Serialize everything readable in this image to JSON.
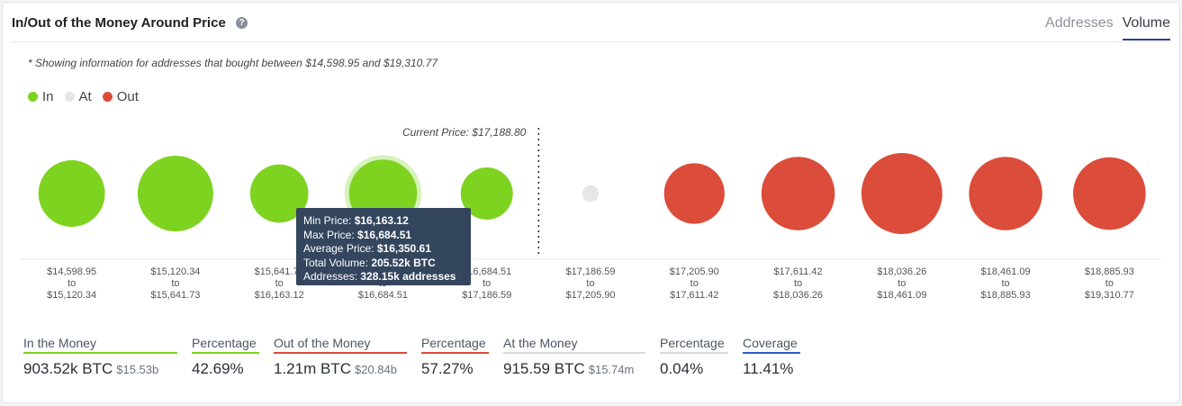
{
  "header": {
    "title": "In/Out of the Money Around Price",
    "help_icon": "question-icon",
    "tabs": [
      {
        "label": "Addresses",
        "active": false
      },
      {
        "label": "Volume",
        "active": true
      }
    ]
  },
  "note": "* Showing information for addresses that bought between $14,598.95 and $19,310.77",
  "legend": [
    {
      "label": "In",
      "color": "#7ed321"
    },
    {
      "label": "At",
      "color": "#e6e6e6"
    },
    {
      "label": "Out",
      "color": "#db4c3a"
    }
  ],
  "chart_data": {
    "type": "scatter",
    "current_price_label": "Current Price: $17,188.80",
    "categories": [
      {
        "from": "$14,598.95",
        "to": "$15,120.34",
        "status": "in"
      },
      {
        "from": "$15,120.34",
        "to": "$15,641.73",
        "status": "in"
      },
      {
        "from": "$15,641.73",
        "to": "$16,163.12",
        "status": "in"
      },
      {
        "from": "$16,163.12",
        "to": "$16,684.51",
        "status": "in"
      },
      {
        "from": "$16,684.51",
        "to": "$17,186.59",
        "status": "in"
      },
      {
        "from": "$17,186.59",
        "to": "$17,205.90",
        "status": "at"
      },
      {
        "from": "$17,205.90",
        "to": "$17,611.42",
        "status": "out"
      },
      {
        "from": "$17,611.42",
        "to": "$18,036.26",
        "status": "out"
      },
      {
        "from": "$18,036.26",
        "to": "$18,461.09",
        "status": "out"
      },
      {
        "from": "$18,461.09",
        "to": "$18,885.93",
        "status": "out"
      },
      {
        "from": "$18,885.93",
        "to": "$19,310.77",
        "status": "out"
      }
    ],
    "bubble_size_relative": [
      0.88,
      1.0,
      0.77,
      0.9,
      0.69,
      0.22,
      0.8,
      0.97,
      1.07,
      0.97,
      0.96
    ],
    "current_price_between_index": [
      4,
      5
    ],
    "highlighted_index": 3,
    "tooltip": {
      "lines": [
        {
          "label": "Min Price:",
          "value": "$16,163.12"
        },
        {
          "label": "Max Price:",
          "value": "$16,684.51"
        },
        {
          "label": "Average Price:",
          "value": "$16,350.61"
        },
        {
          "label": "Total Volume:",
          "value": "205.52k BTC"
        },
        {
          "label": "Addresses:",
          "value": "328.15k addresses"
        }
      ]
    }
  },
  "stats": [
    {
      "label": "In the Money",
      "value": "903.52k BTC",
      "sub": "$15.53b",
      "color": "#7ed321"
    },
    {
      "label": "Percentage",
      "value": "42.69%",
      "sub": "",
      "color": "#7ed321"
    },
    {
      "label": "Out of the Money",
      "value": "1.21m BTC",
      "sub": "$20.84b",
      "color": "#db4c3a"
    },
    {
      "label": "Percentage",
      "value": "57.27%",
      "sub": "",
      "color": "#db4c3a"
    },
    {
      "label": "At the Money",
      "value": "915.59 BTC",
      "sub": "$15.74m",
      "color": "#d9d9d9"
    },
    {
      "label": "Percentage",
      "value": "0.04%",
      "sub": "",
      "color": "#d9d9d9"
    },
    {
      "label": "Coverage",
      "value": "11.41%",
      "sub": "",
      "color": "#2f5bd3"
    }
  ],
  "colors": {
    "in": "#7ed321",
    "at": "#e6e6e6",
    "out": "#db4c3a",
    "tooltip_bg": "#34465e"
  }
}
